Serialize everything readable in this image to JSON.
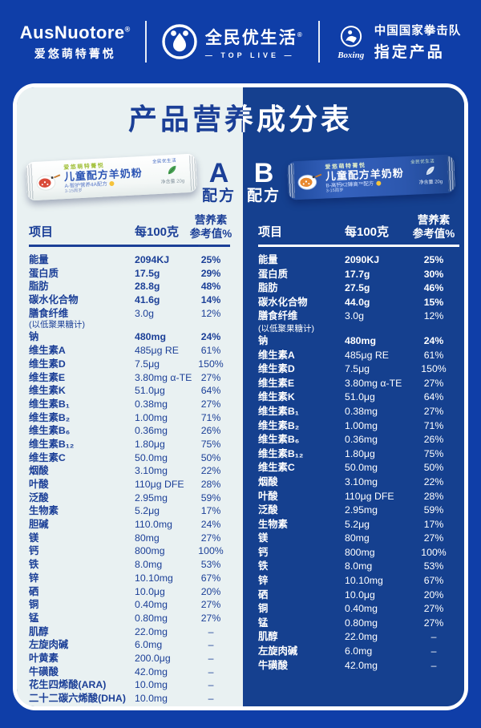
{
  "colors": {
    "page_blue": "#0f3ea8",
    "panel_blue": "#15408f",
    "panel_light": "#e9f1f2",
    "ink_blue": "#1b3f97"
  },
  "header": {
    "brand_en": "AusNuotore",
    "brand_reg": "®",
    "brand_cn": "爱悠萌特菁悦",
    "toplive_cn": "全民优生活",
    "toplive_reg": "®",
    "toplive_sub": "— TOP LIVE —",
    "boxing_script": "Boxing",
    "boxing_line1": "中国国家拳击队",
    "boxing_line2": "指定产品"
  },
  "title": "产品营养成分表",
  "table_headers": {
    "item": "项目",
    "per": "每100克",
    "nrv_line1": "营养素",
    "nrv_line2": "参考值%"
  },
  "formula_a": {
    "badge_letter": "A",
    "badge_word": "配方",
    "pack": {
      "brand": "爱悠萌特菁悦",
      "name": "儿童配方羊奶粉",
      "sub": "A-智护营养4A配方",
      "age": "3-15周岁",
      "net": "净含量 20g",
      "corner": "全民优生活"
    },
    "rows": [
      {
        "label": "能量",
        "value": "2094KJ",
        "pct": "25%",
        "bold": true
      },
      {
        "label": "蛋白质",
        "value": "17.5g",
        "pct": "29%",
        "bold": true
      },
      {
        "label": "脂肪",
        "value": "28.8g",
        "pct": "48%",
        "bold": true
      },
      {
        "label": "碳水化合物",
        "value": "41.6g",
        "pct": "14%",
        "bold": true
      },
      {
        "label": "膳食纤维",
        "note": "(以低聚果糖计)",
        "value": "3.0g",
        "pct": "12%"
      },
      {
        "label": "钠",
        "value": "480mg",
        "pct": "24%",
        "bold": true
      },
      {
        "label": "维生素A",
        "value": "485μg RE",
        "pct": "61%"
      },
      {
        "label": "维生素D",
        "value": "7.5μg",
        "pct": "150%"
      },
      {
        "label": "维生素E",
        "value": "3.80mg α-TE",
        "pct": "27%"
      },
      {
        "label": "维生素K",
        "value": "51.0μg",
        "pct": "64%"
      },
      {
        "label": "维生素B₁",
        "value": "0.38mg",
        "pct": "27%"
      },
      {
        "label": "维生素B₂",
        "value": "1.00mg",
        "pct": "71%"
      },
      {
        "label": "维生素B₆",
        "value": "0.36mg",
        "pct": "26%"
      },
      {
        "label": "维生素B₁₂",
        "value": "1.80μg",
        "pct": "75%"
      },
      {
        "label": "维生素C",
        "value": "50.0mg",
        "pct": "50%"
      },
      {
        "label": "烟酸",
        "value": "3.10mg",
        "pct": "22%"
      },
      {
        "label": "叶酸",
        "value": "110μg DFE",
        "pct": "28%"
      },
      {
        "label": "泛酸",
        "value": "2.95mg",
        "pct": "59%"
      },
      {
        "label": "生物素",
        "value": "5.2μg",
        "pct": "17%"
      },
      {
        "label": "胆碱",
        "value": "110.0mg",
        "pct": "24%"
      },
      {
        "label": "镁",
        "value": "80mg",
        "pct": "27%"
      },
      {
        "label": "钙",
        "value": "800mg",
        "pct": "100%"
      },
      {
        "label": "铁",
        "value": "8.0mg",
        "pct": "53%"
      },
      {
        "label": "锌",
        "value": "10.10mg",
        "pct": "67%"
      },
      {
        "label": "硒",
        "value": "10.0μg",
        "pct": "20%"
      },
      {
        "label": "铜",
        "value": "0.40mg",
        "pct": "27%"
      },
      {
        "label": "锰",
        "value": "0.80mg",
        "pct": "27%"
      },
      {
        "label": "肌醇",
        "value": "22.0mg",
        "pct": "–"
      },
      {
        "label": "左旋肉碱",
        "value": "6.0mg",
        "pct": "–"
      },
      {
        "label": "叶黄素",
        "value": "200.0μg",
        "pct": "–"
      },
      {
        "label": "牛磺酸",
        "value": "42.0mg",
        "pct": "–"
      },
      {
        "label": "花生四烯酸(ARA)",
        "value": "10.0mg",
        "pct": "–"
      },
      {
        "label": "二十二碳六烯酸(DHA)",
        "value": "10.0mg",
        "pct": "–"
      }
    ]
  },
  "formula_b": {
    "badge_letter": "B",
    "badge_word": "配方",
    "pack": {
      "brand": "爱悠萌特菁悦",
      "name": "儿童配方羊奶粉",
      "sub": "B-高钙K2臻高™配方",
      "age": "3-15周岁",
      "net": "净含量 20g",
      "corner": "全民优生活"
    },
    "rows": [
      {
        "label": "能量",
        "value": "2090KJ",
        "pct": "25%",
        "bold": true
      },
      {
        "label": "蛋白质",
        "value": "17.7g",
        "pct": "30%",
        "bold": true
      },
      {
        "label": "脂肪",
        "value": "27.5g",
        "pct": "46%",
        "bold": true
      },
      {
        "label": "碳水化合物",
        "value": "44.0g",
        "pct": "15%",
        "bold": true
      },
      {
        "label": "膳食纤维",
        "note": "(以低聚果糖计)",
        "value": "3.0g",
        "pct": "12%"
      },
      {
        "label": "钠",
        "value": "480mg",
        "pct": "24%",
        "bold": true
      },
      {
        "label": "维生素A",
        "value": "485μg RE",
        "pct": "61%"
      },
      {
        "label": "维生素D",
        "value": "7.5μg",
        "pct": "150%"
      },
      {
        "label": "维生素E",
        "value": "3.80mg α-TE",
        "pct": "27%"
      },
      {
        "label": "维生素K",
        "value": "51.0μg",
        "pct": "64%"
      },
      {
        "label": "维生素B₁",
        "value": "0.38mg",
        "pct": "27%"
      },
      {
        "label": "维生素B₂",
        "value": "1.00mg",
        "pct": "71%"
      },
      {
        "label": "维生素B₆",
        "value": "0.36mg",
        "pct": "26%"
      },
      {
        "label": "维生素B₁₂",
        "value": "1.80μg",
        "pct": "75%"
      },
      {
        "label": "维生素C",
        "value": "50.0mg",
        "pct": "50%"
      },
      {
        "label": "烟酸",
        "value": "3.10mg",
        "pct": "22%"
      },
      {
        "label": "叶酸",
        "value": "110μg DFE",
        "pct": "28%"
      },
      {
        "label": "泛酸",
        "value": "2.95mg",
        "pct": "59%"
      },
      {
        "label": "生物素",
        "value": "5.2μg",
        "pct": "17%"
      },
      {
        "label": "镁",
        "value": "80mg",
        "pct": "27%"
      },
      {
        "label": "钙",
        "value": "800mg",
        "pct": "100%"
      },
      {
        "label": "铁",
        "value": "8.0mg",
        "pct": "53%"
      },
      {
        "label": "锌",
        "value": "10.10mg",
        "pct": "67%"
      },
      {
        "label": "硒",
        "value": "10.0μg",
        "pct": "20%"
      },
      {
        "label": "铜",
        "value": "0.40mg",
        "pct": "27%"
      },
      {
        "label": "锰",
        "value": "0.80mg",
        "pct": "27%"
      },
      {
        "label": "肌醇",
        "value": "22.0mg",
        "pct": "–"
      },
      {
        "label": "左旋肉碱",
        "value": "6.0mg",
        "pct": "–"
      },
      {
        "label": "牛磺酸",
        "value": "42.0mg",
        "pct": "–"
      }
    ]
  }
}
